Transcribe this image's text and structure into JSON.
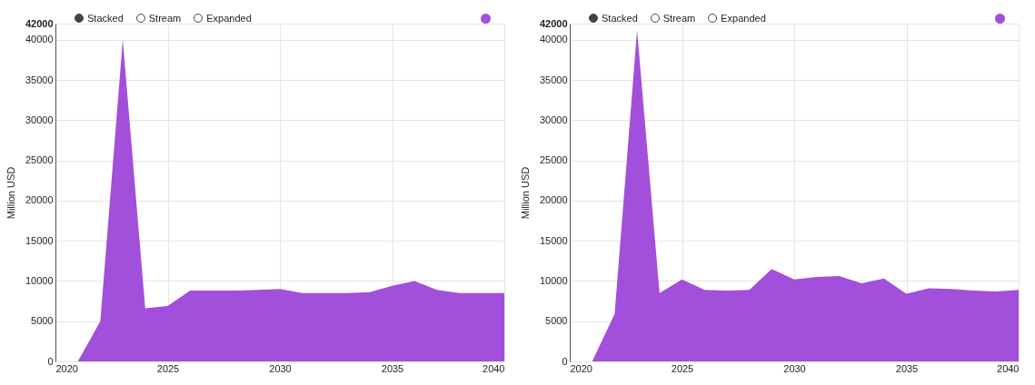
{
  "chart_data": [
    {
      "type": "area",
      "ylabel": "Million USD",
      "annotations": [
        "Stacked",
        "Stream",
        "Expanded"
      ],
      "grid": true,
      "x": [
        2021,
        2022,
        2023,
        2024,
        2025,
        2026,
        2027,
        2028,
        2029,
        2030,
        2031,
        2032,
        2033,
        2034,
        2035,
        2036,
        2037,
        2038,
        2039,
        2040
      ],
      "series": [
        {
          "color": "#a24fdb",
          "values": [
            0,
            5000,
            40000,
            6600,
            6900,
            8800,
            8800,
            8800,
            8900,
            9000,
            8500,
            8500,
            8500,
            8600,
            9400,
            10000,
            8900,
            8500,
            8500,
            8500
          ]
        }
      ],
      "xlim": [
        2020,
        2040
      ],
      "xticks": [
        2020,
        2025,
        2030,
        2035,
        2040
      ],
      "ylim": [
        0,
        42000
      ],
      "yticks": [
        0,
        5000,
        10000,
        15000,
        20000,
        25000,
        30000,
        35000,
        40000,
        42000
      ]
    },
    {
      "type": "area",
      "ylabel": "Million USD",
      "annotations": [
        "Stacked",
        "Stream",
        "Expanded"
      ],
      "grid": true,
      "x": [
        2021,
        2022,
        2023,
        2024,
        2025,
        2026,
        2027,
        2028,
        2029,
        2030,
        2031,
        2032,
        2033,
        2034,
        2035,
        2036,
        2037,
        2038,
        2039,
        2040
      ],
      "series": [
        {
          "color": "#a24fdb",
          "values": [
            0,
            5900,
            41200,
            8500,
            10200,
            8900,
            8800,
            8900,
            11500,
            10200,
            10500,
            10600,
            9700,
            10300,
            8400,
            9100,
            9000,
            8800,
            8700,
            8900
          ]
        }
      ],
      "xlim": [
        2020,
        2040
      ],
      "xticks": [
        2020,
        2025,
        2030,
        2035,
        2040
      ],
      "ylim": [
        0,
        42000
      ],
      "yticks": [
        0,
        5000,
        10000,
        15000,
        20000,
        25000,
        30000,
        35000,
        40000,
        42000
      ]
    }
  ]
}
